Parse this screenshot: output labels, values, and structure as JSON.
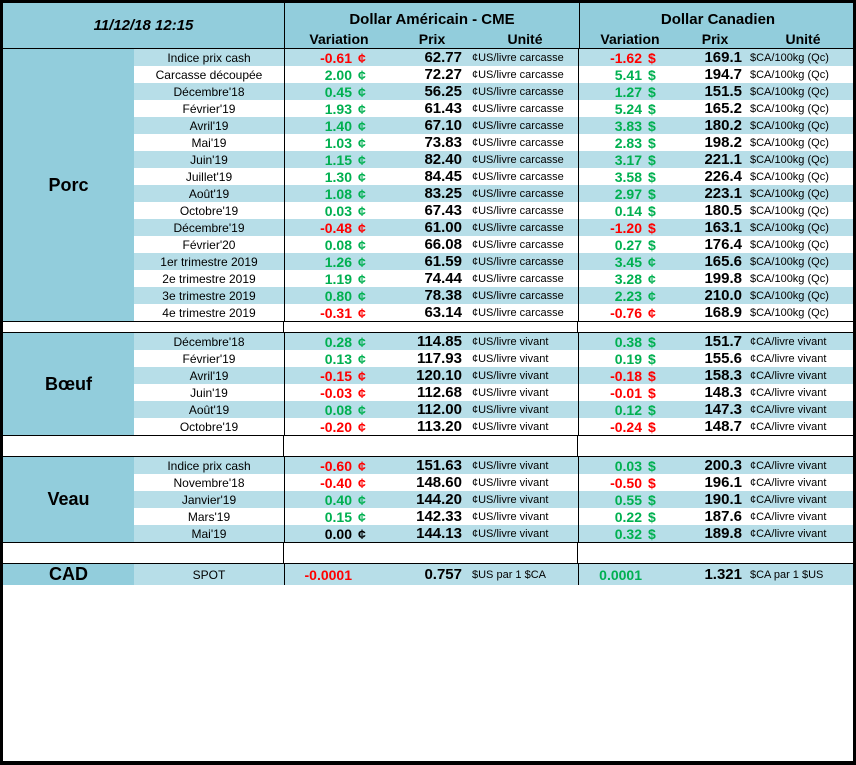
{
  "palette": {
    "green": "#00B050",
    "red": "#FF0000",
    "black": "#000000",
    "header_blue": "#92CDDC",
    "row_blue": "#B7DEE8"
  },
  "header": {
    "timestamp": "11/12/18 12:15",
    "us_group": "Dollar Américain - CME",
    "ca_group": "Dollar Canadien",
    "col_variation": "Variation",
    "col_prix": "Prix",
    "col_unite": "Unité"
  },
  "row_schema": [
    "variation",
    "symbol",
    "color",
    "prix",
    "unite"
  ],
  "sections": [
    {
      "label": "Porc",
      "rows": [
        {
          "item": "Indice prix cash",
          "us": [
            "-0.61",
            "¢",
            "red",
            "62.77",
            "¢US/livre carcasse"
          ],
          "ca": [
            "-1.62",
            "$",
            "red",
            "169.1",
            "$CA/100kg (Qc)"
          ]
        },
        {
          "item": "Carcasse découpée",
          "us": [
            "2.00",
            "¢",
            "green",
            "72.27",
            "¢US/livre carcasse"
          ],
          "ca": [
            "5.41",
            "$",
            "green",
            "194.7",
            "$CA/100kg (Qc)"
          ]
        },
        {
          "item": "Décembre'18",
          "us": [
            "0.45",
            "¢",
            "green",
            "56.25",
            "¢US/livre carcasse"
          ],
          "ca": [
            "1.27",
            "$",
            "green",
            "151.5",
            "$CA/100kg (Qc)"
          ]
        },
        {
          "item": "Février'19",
          "us": [
            "1.93",
            "¢",
            "green",
            "61.43",
            "¢US/livre carcasse"
          ],
          "ca": [
            "5.24",
            "$",
            "green",
            "165.2",
            "$CA/100kg (Qc)"
          ]
        },
        {
          "item": "Avril'19",
          "us": [
            "1.40",
            "¢",
            "green",
            "67.10",
            "¢US/livre carcasse"
          ],
          "ca": [
            "3.83",
            "$",
            "green",
            "180.2",
            "$CA/100kg (Qc)"
          ]
        },
        {
          "item": "Mai'19",
          "us": [
            "1.03",
            "¢",
            "green",
            "73.83",
            "¢US/livre carcasse"
          ],
          "ca": [
            "2.83",
            "$",
            "green",
            "198.2",
            "$CA/100kg (Qc)"
          ]
        },
        {
          "item": "Juin'19",
          "us": [
            "1.15",
            "¢",
            "green",
            "82.40",
            "¢US/livre carcasse"
          ],
          "ca": [
            "3.17",
            "$",
            "green",
            "221.1",
            "$CA/100kg (Qc)"
          ]
        },
        {
          "item": "Juillet'19",
          "us": [
            "1.30",
            "¢",
            "green",
            "84.45",
            "¢US/livre carcasse"
          ],
          "ca": [
            "3.58",
            "$",
            "green",
            "226.4",
            "$CA/100kg (Qc)"
          ]
        },
        {
          "item": "Août'19",
          "us": [
            "1.08",
            "¢",
            "green",
            "83.25",
            "¢US/livre carcasse"
          ],
          "ca": [
            "2.97",
            "$",
            "green",
            "223.1",
            "$CA/100kg (Qc)"
          ]
        },
        {
          "item": "Octobre'19",
          "us": [
            "0.03",
            "¢",
            "green",
            "67.43",
            "¢US/livre carcasse"
          ],
          "ca": [
            "0.14",
            "$",
            "green",
            "180.5",
            "$CA/100kg (Qc)"
          ]
        },
        {
          "item": "Décembre'19",
          "us": [
            "-0.48",
            "¢",
            "red",
            "61.00",
            "¢US/livre carcasse"
          ],
          "ca": [
            "-1.20",
            "$",
            "red",
            "163.1",
            "$CA/100kg (Qc)"
          ]
        },
        {
          "item": "Février'20",
          "us": [
            "0.08",
            "¢",
            "green",
            "66.08",
            "¢US/livre carcasse"
          ],
          "ca": [
            "0.27",
            "$",
            "green",
            "176.4",
            "$CA/100kg (Qc)"
          ]
        },
        {
          "item": "1er trimestre 2019",
          "us": [
            "1.26",
            "¢",
            "green",
            "61.59",
            "¢US/livre carcasse"
          ],
          "ca": [
            "3.45",
            "¢",
            "green",
            "165.6",
            "$CA/100kg (Qc)"
          ]
        },
        {
          "item": "2e trimestre 2019",
          "us": [
            "1.19",
            "¢",
            "green",
            "74.44",
            "¢US/livre carcasse"
          ],
          "ca": [
            "3.28",
            "¢",
            "green",
            "199.8",
            "$CA/100kg (Qc)"
          ]
        },
        {
          "item": "3e trimestre 2019",
          "us": [
            "0.80",
            "¢",
            "green",
            "78.38",
            "¢US/livre carcasse"
          ],
          "ca": [
            "2.23",
            "¢",
            "green",
            "210.0",
            "$CA/100kg (Qc)"
          ]
        },
        {
          "item": "4e trimestre 2019",
          "us": [
            "-0.31",
            "¢",
            "red",
            "63.14",
            "¢US/livre carcasse"
          ],
          "ca": [
            "-0.76",
            "¢",
            "red",
            "168.9",
            "$CA/100kg (Qc)"
          ]
        }
      ]
    },
    {
      "label": "Bœuf",
      "rows": [
        {
          "item": "Décembre'18",
          "us": [
            "0.28",
            "¢",
            "green",
            "114.85",
            "¢US/livre vivant"
          ],
          "ca": [
            "0.38",
            "$",
            "green",
            "151.7",
            "¢CA/livre vivant"
          ]
        },
        {
          "item": "Février'19",
          "us": [
            "0.13",
            "¢",
            "green",
            "117.93",
            "¢US/livre vivant"
          ],
          "ca": [
            "0.19",
            "$",
            "green",
            "155.6",
            "¢CA/livre vivant"
          ]
        },
        {
          "item": "Avril'19",
          "us": [
            "-0.15",
            "¢",
            "red",
            "120.10",
            "¢US/livre vivant"
          ],
          "ca": [
            "-0.18",
            "$",
            "red",
            "158.3",
            "¢CA/livre vivant"
          ]
        },
        {
          "item": "Juin'19",
          "us": [
            "-0.03",
            "¢",
            "red",
            "112.68",
            "¢US/livre vivant"
          ],
          "ca": [
            "-0.01",
            "$",
            "red",
            "148.3",
            "¢CA/livre vivant"
          ]
        },
        {
          "item": "Août'19",
          "us": [
            "0.08",
            "¢",
            "green",
            "112.00",
            "¢US/livre vivant"
          ],
          "ca": [
            "0.12",
            "$",
            "green",
            "147.3",
            "¢CA/livre vivant"
          ]
        },
        {
          "item": "Octobre'19",
          "us": [
            "-0.20",
            "¢",
            "red",
            "113.20",
            "¢US/livre vivant"
          ],
          "ca": [
            "-0.24",
            "$",
            "red",
            "148.7",
            "¢CA/livre vivant"
          ]
        }
      ]
    },
    {
      "label": "Veau",
      "rows": [
        {
          "item": "Indice prix cash",
          "us": [
            "-0.60",
            "¢",
            "red",
            "151.63",
            "¢US/livre vivant"
          ],
          "ca": [
            "0.03",
            "$",
            "green",
            "200.3",
            "¢CA/livre vivant"
          ]
        },
        {
          "item": "Novembre'18",
          "us": [
            "-0.40",
            "¢",
            "red",
            "148.60",
            "¢US/livre vivant"
          ],
          "ca": [
            "-0.50",
            "$",
            "red",
            "196.1",
            "¢CA/livre vivant"
          ]
        },
        {
          "item": "Janvier'19",
          "us": [
            "0.40",
            "¢",
            "green",
            "144.20",
            "¢US/livre vivant"
          ],
          "ca": [
            "0.55",
            "$",
            "green",
            "190.1",
            "¢CA/livre vivant"
          ]
        },
        {
          "item": "Mars'19",
          "us": [
            "0.15",
            "¢",
            "green",
            "142.33",
            "¢US/livre vivant"
          ],
          "ca": [
            "0.22",
            "$",
            "green",
            "187.6",
            "¢CA/livre vivant"
          ]
        },
        {
          "item": "Mai'19",
          "us": [
            "0.00",
            "¢",
            "black",
            "144.13",
            "¢US/livre vivant"
          ],
          "ca": [
            "0.32",
            "$",
            "green",
            "189.8",
            "¢CA/livre vivant"
          ]
        }
      ]
    },
    {
      "label": "CAD",
      "rows": [
        {
          "item": "SPOT",
          "us": [
            "-0.0001",
            "",
            "red",
            "0.757",
            "$US par 1 $CA"
          ],
          "ca": [
            "0.0001",
            "",
            "green",
            "1.321",
            "$CA par 1 $US"
          ]
        }
      ]
    }
  ]
}
